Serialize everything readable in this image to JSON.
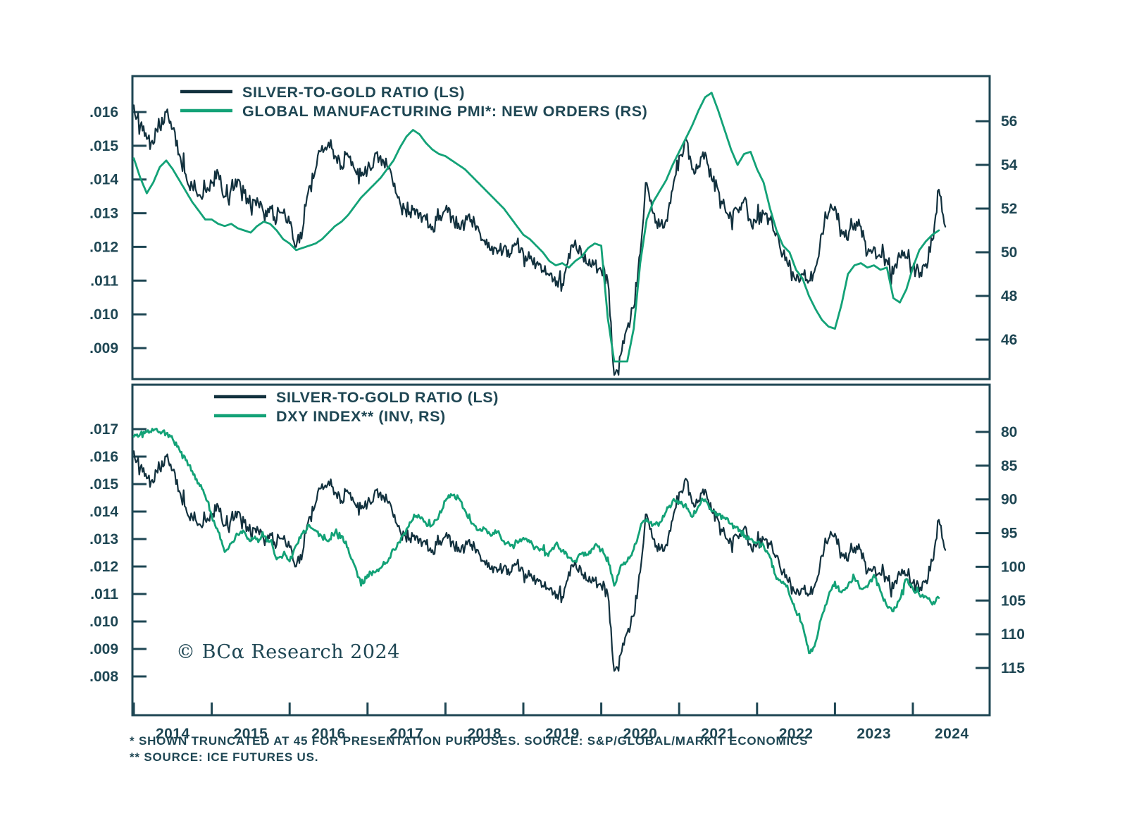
{
  "colors": {
    "dark": "#12313e",
    "green": "#13a277",
    "text": "#1e4653",
    "frame": "#1e4653",
    "background": "#ffffff"
  },
  "copyright": "© BCα Research 2024",
  "footnotes": [
    "* SHOWN TRUNCATED AT 45 FOR PRESENTATION PURPOSES. SOURCE: S&P/GLOBAL/MARKIT ECONOMICS",
    "** SOURCE: ICE FUTURES US."
  ],
  "x_axis": {
    "tick_years": [
      2014,
      2015,
      2016,
      2017,
      2018,
      2019,
      2020,
      2021,
      2022,
      2023,
      2024
    ],
    "labels": [
      "2014",
      "2015",
      "2016",
      "2017",
      "2018",
      "2019",
      "2020",
      "2021",
      "2022",
      "2023",
      "2024"
    ],
    "range": [
      2014.0,
      2025.0
    ]
  },
  "chart_data": [
    {
      "type": "line",
      "panel": "top",
      "title": "",
      "legend_position": "top-left-inside",
      "grid": false,
      "legend": [
        {
          "label": "SILVER-TO-GOLD RATIO (LS)",
          "series": "ratio",
          "color": "dark"
        },
        {
          "label": "GLOBAL MANUFACTURING PMI*: NEW ORDERS (RS)",
          "series": "pmi",
          "color": "green"
        }
      ],
      "left_axis": {
        "ticks": [
          0.016,
          0.015,
          0.014,
          0.013,
          0.012,
          0.011,
          0.01,
          0.009
        ],
        "tick_labels": [
          ".016",
          ".015",
          ".014",
          ".013",
          ".012",
          ".011",
          ".010",
          ".009"
        ],
        "ylim": [
          0.008,
          0.0171
        ]
      },
      "right_axis": {
        "ticks": [
          56,
          54,
          52,
          50,
          48,
          46
        ],
        "tick_labels": [
          "56",
          "54",
          "52",
          "50",
          "48",
          "46"
        ],
        "ylim": [
          44.3,
          58.1
        ]
      },
      "series": [
        {
          "ref": "ratio",
          "axis": "left",
          "color": "dark"
        },
        {
          "ref": "pmi",
          "axis": "right",
          "color": "green"
        }
      ]
    },
    {
      "type": "line",
      "panel": "bottom",
      "title": "",
      "legend_position": "top-left-inside",
      "grid": false,
      "legend": [
        {
          "label": "SILVER-TO-GOLD RATIO (LS)",
          "series": "ratio",
          "color": "dark"
        },
        {
          "label": "DXY INDEX** (INV, RS)",
          "series": "dxy",
          "color": "green"
        }
      ],
      "left_axis": {
        "ticks": [
          0.017,
          0.016,
          0.015,
          0.014,
          0.013,
          0.012,
          0.011,
          0.01,
          0.009,
          0.008
        ],
        "tick_labels": [
          ".017",
          ".016",
          ".015",
          ".014",
          ".013",
          ".012",
          ".011",
          ".010",
          ".009",
          ".008"
        ],
        "ylim": [
          0.0076,
          0.0186
        ]
      },
      "right_axis": {
        "ticks": [
          80,
          85,
          90,
          95,
          100,
          105,
          110,
          115
        ],
        "tick_labels": [
          "80",
          "85",
          "90",
          "95",
          "100",
          "105",
          "110",
          "115"
        ],
        "ylim": [
          78.5,
          122
        ],
        "inverted": true
      },
      "series": [
        {
          "ref": "ratio",
          "axis": "left",
          "color": "dark"
        },
        {
          "ref": "dxy",
          "axis": "right",
          "color": "green"
        }
      ]
    }
  ],
  "series_data": {
    "ratio": {
      "name": "Silver-to-Gold Ratio",
      "start_year": 2014.0,
      "step_months": 1,
      "jitter": 0.00021,
      "values": [
        0.0162,
        0.0156,
        0.0152,
        0.01505,
        0.01555,
        0.016,
        0.0155,
        0.01475,
        0.01415,
        0.0138,
        0.01355,
        0.0137,
        0.0139,
        0.0142,
        0.0135,
        0.01375,
        0.014,
        0.0136,
        0.0132,
        0.01345,
        0.013,
        0.0132,
        0.0128,
        0.013,
        0.0127,
        0.012,
        0.0125,
        0.0138,
        0.0143,
        0.015,
        0.0151,
        0.0147,
        0.0144,
        0.0147,
        0.0143,
        0.0141,
        0.0143,
        0.0146,
        0.0147,
        0.0144,
        0.0138,
        0.0133,
        0.0129,
        0.0131,
        0.013,
        0.0128,
        0.0126,
        0.0128,
        0.0131,
        0.0129,
        0.0127,
        0.0127,
        0.0128,
        0.0126,
        0.0122,
        0.0119,
        0.0118,
        0.012,
        0.0118,
        0.0121,
        0.0118,
        0.01165,
        0.0115,
        0.0113,
        0.01115,
        0.01085,
        0.0109,
        0.0118,
        0.0122,
        0.0117,
        0.01145,
        0.0115,
        0.0113,
        0.011,
        0.0082,
        0.0088,
        0.0096,
        0.0102,
        0.0118,
        0.0139,
        0.013,
        0.0126,
        0.0128,
        0.0137,
        0.0147,
        0.0152,
        0.0143,
        0.0144,
        0.0148,
        0.014,
        0.0137,
        0.0132,
        0.0129,
        0.0131,
        0.0134,
        0.0128,
        0.0128,
        0.013,
        0.0128,
        0.0124,
        0.0118,
        0.0116,
        0.011,
        0.0112,
        0.011,
        0.0114,
        0.0124,
        0.013,
        0.0132,
        0.0125,
        0.0122,
        0.0127,
        0.0126,
        0.0118,
        0.012,
        0.0117,
        0.0116,
        0.0112,
        0.0117,
        0.0117,
        0.0114,
        0.0111,
        0.0115,
        0.0122,
        0.0137,
        0.0126
      ]
    },
    "pmi": {
      "name": "Global Manufacturing PMI: New Orders (truncated at 45)",
      "start_year": 2014.0,
      "step_months": 1,
      "jitter": 0,
      "values": [
        54.3,
        53.4,
        52.7,
        53.2,
        53.9,
        54.2,
        53.8,
        53.3,
        52.8,
        52.3,
        51.9,
        51.5,
        51.5,
        51.3,
        51.2,
        51.3,
        51.1,
        51.0,
        50.9,
        51.2,
        51.4,
        51.3,
        51.0,
        50.6,
        50.4,
        50.1,
        50.2,
        50.3,
        50.4,
        50.6,
        50.9,
        51.2,
        51.4,
        51.7,
        52.1,
        52.5,
        52.8,
        53.1,
        53.4,
        53.8,
        54.2,
        54.8,
        55.3,
        55.6,
        55.4,
        55.0,
        54.7,
        54.5,
        54.4,
        54.2,
        54.0,
        53.8,
        53.5,
        53.2,
        52.9,
        52.6,
        52.3,
        52.0,
        51.6,
        51.2,
        50.8,
        50.6,
        50.3,
        50.0,
        49.6,
        49.4,
        49.5,
        49.3,
        49.6,
        49.8,
        50.2,
        50.4,
        50.3,
        47.0,
        45.0,
        45.0,
        45.0,
        46.5,
        49.5,
        51.5,
        52.3,
        52.8,
        53.3,
        54.0,
        54.6,
        55.2,
        55.8,
        56.5,
        57.1,
        57.3,
        56.5,
        55.6,
        54.7,
        54.0,
        54.5,
        54.6,
        53.8,
        53.2,
        52.0,
        51.0,
        50.3,
        50.0,
        49.2,
        48.8,
        48.0,
        47.4,
        46.9,
        46.6,
        46.5,
        47.6,
        49.0,
        49.4,
        49.5,
        49.3,
        49.4,
        49.2,
        49.3,
        47.9,
        47.7,
        48.3,
        49.3,
        50.1,
        50.5,
        50.8,
        51.0
      ]
    },
    "dxy": {
      "name": "DXY Index (inverted right scale)",
      "start_year": 2014.0,
      "step_months": 1,
      "jitter": 0.38,
      "values": [
        80.7,
        80.3,
        80.0,
        79.8,
        80.0,
        80.2,
        81.1,
        82.6,
        84.2,
        85.8,
        87.6,
        89.5,
        92.5,
        94.8,
        97.8,
        96.5,
        95.2,
        94.8,
        96.2,
        95.8,
        95.5,
        96.2,
        98.9,
        98.2,
        99.2,
        96.8,
        95.0,
        93.8,
        94.6,
        95.6,
        96.2,
        94.9,
        95.4,
        97.2,
        99.8,
        102.8,
        101.2,
        100.8,
        100.2,
        99.4,
        97.4,
        96.4,
        94.4,
        93.0,
        92.6,
        93.6,
        93.8,
        92.4,
        90.2,
        89.4,
        89.8,
        91.6,
        93.6,
        94.6,
        94.3,
        95.4,
        94.8,
        96.2,
        96.9,
        96.2,
        95.7,
        96.4,
        97.0,
        97.5,
        97.8,
        96.6,
        97.6,
        98.6,
        99.1,
        98.0,
        98.2,
        96.8,
        97.5,
        98.6,
        102.8,
        99.8,
        99.2,
        97.4,
        94.2,
        92.9,
        93.8,
        93.4,
        91.8,
        90.2,
        90.3,
        90.7,
        92.6,
        91.0,
        90.0,
        91.8,
        92.4,
        92.7,
        93.6,
        94.1,
        95.6,
        95.9,
        96.4,
        96.8,
        98.6,
        101.8,
        102.2,
        104.2,
        106.6,
        108.6,
        112.8,
        111.2,
        107.2,
        104.3,
        102.2,
        103.8,
        102.8,
        101.6,
        103.2,
        103.0,
        101.2,
        103.6,
        105.8,
        106.6,
        104.8,
        101.8,
        103.2,
        104.1,
        104.4,
        105.6,
        104.6
      ]
    }
  }
}
